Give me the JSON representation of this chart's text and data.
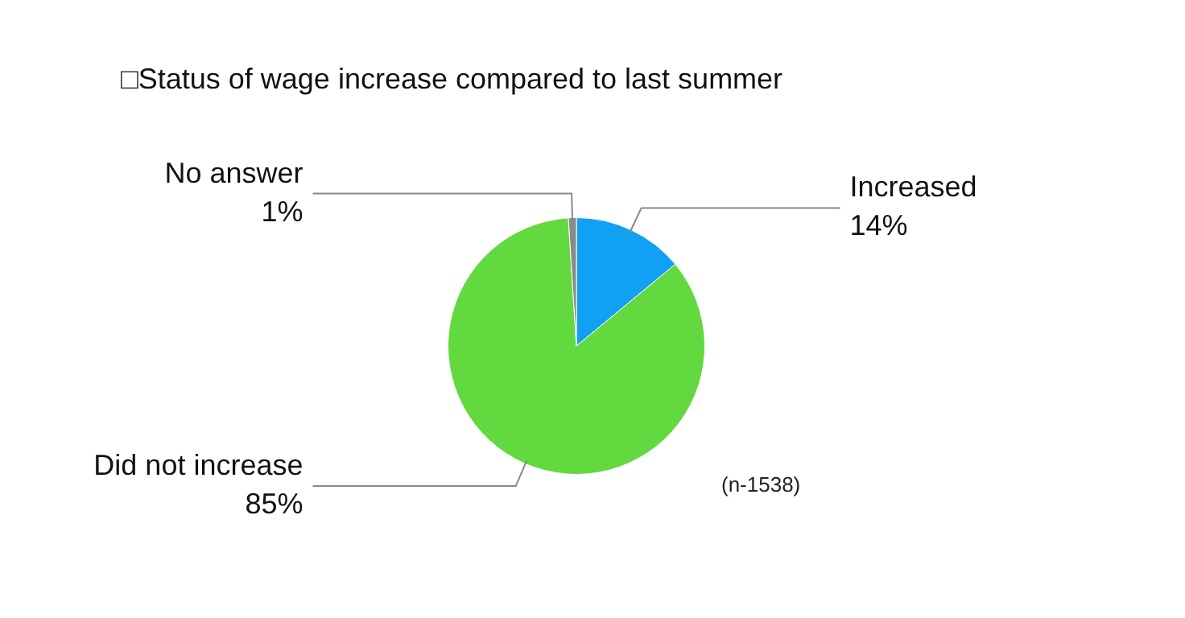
{
  "chart_data": {
    "type": "pie",
    "title": "□Status of wage increase compared to last summer",
    "categories": [
      "Increased",
      "Did not increase",
      "No answer"
    ],
    "values": [
      14,
      85,
      1
    ],
    "value_labels": [
      "14%",
      "85%",
      "1%"
    ],
    "colors": [
      "#12a0f5",
      "#62d93f",
      "#8a8a8a"
    ],
    "legend": false,
    "annotations": [
      "(n-1538)"
    ]
  }
}
